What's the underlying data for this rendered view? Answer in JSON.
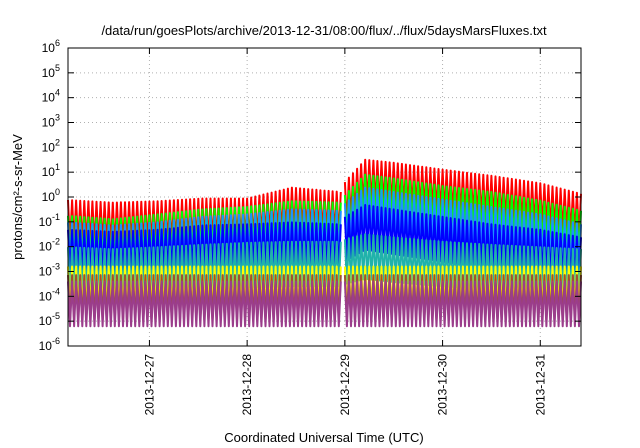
{
  "chart_data": {
    "type": "line",
    "title": "/data/run/goesPlots/archive/2013-12-31/08:00/flux/../flux/5daysMarsFluxes.txt",
    "xlabel": "Coordinated Universal Time (UTC)",
    "ylabel": "protons/cm²-s-sr-MeV",
    "y_scale": "log",
    "ylim": [
      1e-06,
      1000000.0
    ],
    "y_ticks": [
      {
        "mant": "10",
        "exp": "-6"
      },
      {
        "mant": "10",
        "exp": "-5"
      },
      {
        "mant": "10",
        "exp": "-4"
      },
      {
        "mant": "10",
        "exp": "-3"
      },
      {
        "mant": "10",
        "exp": "-2"
      },
      {
        "mant": "10",
        "exp": "-1"
      },
      {
        "mant": "10",
        "exp": "0"
      },
      {
        "mant": "10",
        "exp": "1"
      },
      {
        "mant": "10",
        "exp": "2"
      },
      {
        "mant": "10",
        "exp": "3"
      },
      {
        "mant": "10",
        "exp": "4"
      },
      {
        "mant": "10",
        "exp": "5"
      },
      {
        "mant": "10",
        "exp": "6"
      }
    ],
    "xlim": [
      "2013-12-26T04:00",
      "2013-12-31T10:00"
    ],
    "x_ticks": [
      "2013-12-27",
      "2013-12-28",
      "2013-12-29",
      "2013-12-30",
      "2013-12-31"
    ],
    "grid": true,
    "legend": "none",
    "series": [
      {
        "color": "#ff0000",
        "pattern": "sawtooth",
        "segments": [
          {
            "x": [
              "2013-12-26T04:00",
              "2013-12-26T15:00",
              "2013-12-27T02:00",
              "2013-12-27T13:00",
              "2013-12-28T00:00",
              "2013-12-28T11:00",
              "2013-12-28T23:00"
            ],
            "y": [
              0.095,
              0.075,
              0.085,
              0.11,
              0.11,
              0.3,
              0.2
            ]
          },
          {
            "x": [
              "2013-12-29T00:00",
              "2013-12-29T05:00",
              "2013-12-29T12:00",
              "2013-12-30T00:00",
              "2013-12-30T12:00",
              "2013-12-31T00:00",
              "2013-12-31T10:00"
            ],
            "y": [
              0.5,
              4.0,
              3.0,
              1.6,
              0.9,
              0.45,
              0.17
            ]
          }
        ]
      },
      {
        "color": "#00ff00",
        "pattern": "sawtooth",
        "segments": [
          {
            "x": [
              "2013-12-26T04:00",
              "2013-12-26T15:00",
              "2013-12-27T02:00",
              "2013-12-27T13:00",
              "2013-12-28T00:00",
              "2013-12-28T11:00",
              "2013-12-28T23:00"
            ],
            "y": [
              0.022,
              0.016,
              0.025,
              0.04,
              0.05,
              0.085,
              0.075
            ]
          },
          {
            "x": [
              "2013-12-29T00:00",
              "2013-12-29T05:00",
              "2013-12-29T12:00",
              "2013-12-30T00:00",
              "2013-12-30T12:00",
              "2013-12-31T00:00",
              "2013-12-31T10:00"
            ],
            "y": [
              0.15,
              1.0,
              0.7,
              0.35,
              0.2,
              0.09,
              0.035
            ]
          }
        ]
      },
      {
        "color": "#1e90ff",
        "pattern": "sawtooth",
        "segments": [
          {
            "x": [
              "2013-12-26T04:00",
              "2013-12-26T15:00",
              "2013-12-27T02:00",
              "2013-12-27T13:00",
              "2013-12-28T00:00",
              "2013-12-28T11:00",
              "2013-12-28T23:00"
            ],
            "y": [
              0.012,
              0.009,
              0.012,
              0.02,
              0.025,
              0.04,
              0.035
            ]
          },
          {
            "x": [
              "2013-12-29T00:00",
              "2013-12-29T05:00",
              "2013-12-29T12:00",
              "2013-12-30T00:00",
              "2013-12-30T12:00",
              "2013-12-31T00:00",
              "2013-12-31T10:00"
            ],
            "y": [
              0.07,
              0.3,
              0.2,
              0.1,
              0.05,
              0.025,
              0.01
            ]
          }
        ]
      },
      {
        "color": "#0000ff",
        "pattern": "sawtooth",
        "segments": [
          {
            "x": [
              "2013-12-26T04:00",
              "2013-12-26T15:00",
              "2013-12-27T02:00",
              "2013-12-27T13:00",
              "2013-12-28T00:00",
              "2013-12-28T11:00",
              "2013-12-28T23:00"
            ],
            "y": [
              0.006,
              0.005,
              0.006,
              0.009,
              0.01,
              0.012,
              0.01
            ]
          },
          {
            "x": [
              "2013-12-29T00:00",
              "2013-12-29T05:00",
              "2013-12-29T12:00",
              "2013-12-30T00:00",
              "2013-12-30T12:00",
              "2013-12-31T00:00",
              "2013-12-31T10:00"
            ],
            "y": [
              0.02,
              0.06,
              0.04,
              0.02,
              0.01,
              0.006,
              0.003
            ]
          }
        ]
      },
      {
        "color": "#20b2aa",
        "pattern": "sawtooth",
        "segments": [
          {
            "x": [
              "2013-12-26T04:00",
              "2013-12-26T15:00",
              "2013-12-27T02:00",
              "2013-12-27T13:00",
              "2013-12-28T00:00",
              "2013-12-28T11:00",
              "2013-12-28T23:00"
            ],
            "y": [
              0.0012,
              0.001,
              0.0012,
              0.0015,
              0.0018,
              0.002,
              0.002
            ]
          },
          {
            "x": [
              "2013-12-29T00:00",
              "2013-12-29T05:00",
              "2013-12-29T12:00",
              "2013-12-30T00:00",
              "2013-12-30T12:00",
              "2013-12-31T00:00",
              "2013-12-31T10:00"
            ],
            "y": [
              0.0025,
              0.004,
              0.003,
              0.002,
              0.0015,
              0.0012,
              0.001
            ]
          }
        ]
      },
      {
        "color": "#ffff00",
        "pattern": "sawtooth",
        "segments": [
          {
            "x": [
              "2013-12-26T04:00",
              "2013-12-28T23:00"
            ],
            "y": [
              0.0002,
              0.0002
            ]
          },
          {
            "x": [
              "2013-12-29T00:00",
              "2013-12-31T10:00"
            ],
            "y": [
              0.0002,
              0.0002
            ]
          }
        ]
      },
      {
        "color": "#a0522d",
        "pattern": "sawtooth",
        "segments": [
          {
            "x": [
              "2013-12-26T04:00",
              "2013-12-28T23:00"
            ],
            "y": [
              9e-05,
              9e-05
            ]
          },
          {
            "x": [
              "2013-12-29T00:00",
              "2013-12-31T10:00"
            ],
            "y": [
              9e-05,
              9e-05
            ]
          }
        ]
      },
      {
        "color": "#9b3d8b",
        "pattern": "sawtooth",
        "segments": [
          {
            "x": [
              "2013-12-26T04:00",
              "2013-12-28T23:00"
            ],
            "y": [
              5e-05,
              5e-05
            ]
          },
          {
            "x": [
              "2013-12-29T00:00",
              "2013-12-31T10:00"
            ],
            "y": [
              5e-05,
              5e-05
            ]
          }
        ]
      }
    ]
  }
}
